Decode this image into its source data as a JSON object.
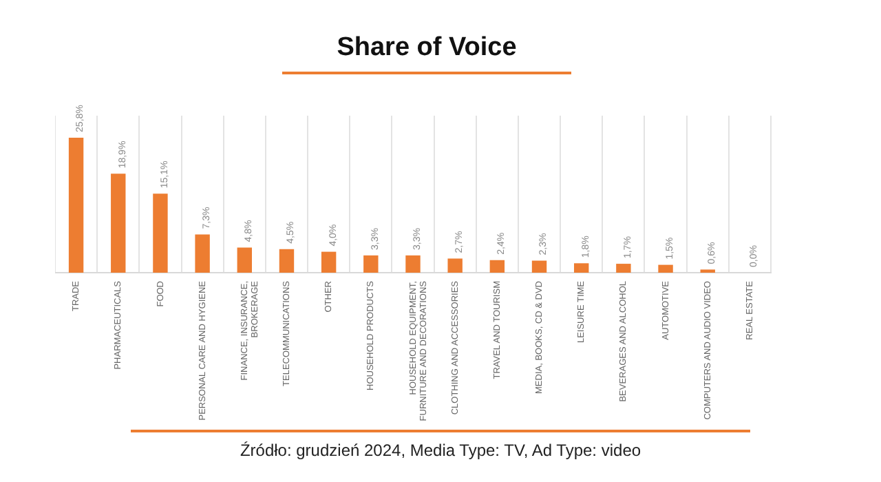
{
  "chart_data": {
    "type": "bar",
    "title": "Share of Voice",
    "categories": [
      "TRADE",
      "PHARMACEUTICALS",
      "FOOD",
      "PERSONAL CARE AND HYGIENE",
      "FINANCE, INSURANCE,\nBROKERAGE",
      "TELECOMMUNICATIONS",
      "OTHER",
      "HOUSEHOLD PRODUCTS",
      "HOUSEHOLD EQUIPMENT,\nFURNITURE AND DECORATIONS",
      "CLOTHING AND ACCESSORIES",
      "TRAVEL AND TOURISM",
      "MEDIA, BOOKS, CD & DVD",
      "LEISURE TIME",
      "BEVERAGES AND ALCOHOL",
      "AUTOMOTIVE",
      "COMPUTERS AND AUDIO VIDEO",
      "REAL ESTATE"
    ],
    "values": [
      25.8,
      18.9,
      15.1,
      7.3,
      4.8,
      4.5,
      4.0,
      3.3,
      3.3,
      2.7,
      2.4,
      2.3,
      1.8,
      1.7,
      1.5,
      0.6,
      0.0
    ],
    "value_labels": [
      "25,8%",
      "18,9%",
      "15,1%",
      "7,3%",
      "4,8%",
      "4,5%",
      "4,0%",
      "3,3%",
      "3,3%",
      "2,7%",
      "2,4%",
      "2,3%",
      "1,8%",
      "1,7%",
      "1,5%",
      "0,6%",
      "0,0%"
    ],
    "color": "#ed7d31",
    "grid": "x",
    "legend": false,
    "annotations": [
      "Źródło: grudzień 2024, Media Type: TV, Ad Type: video"
    ]
  }
}
